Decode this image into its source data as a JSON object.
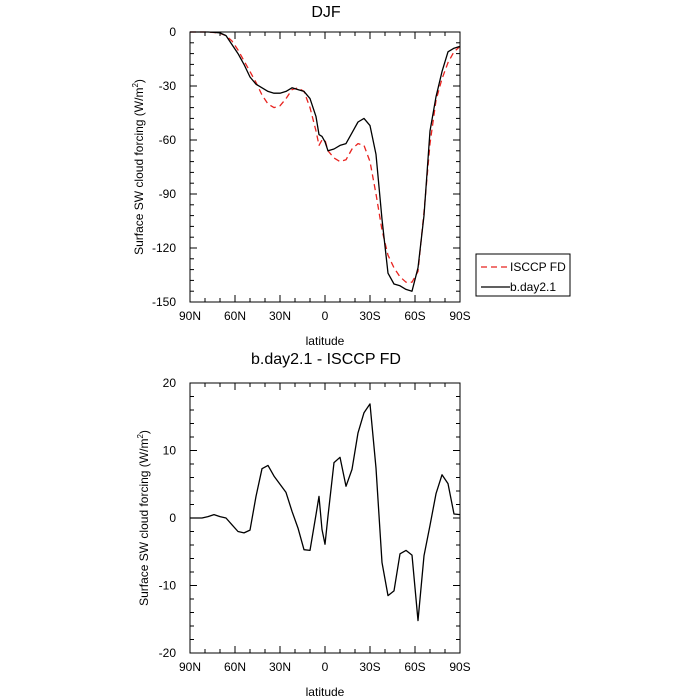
{
  "chart_data": [
    {
      "type": "line",
      "title": "DJF",
      "xlabel": "latitude",
      "ylabel": "Surface SW cloud forcing (W/m",
      "ylabel_superscript": "2",
      "ylabel_suffix": ")",
      "xlim": [
        90,
        -90
      ],
      "ylim": [
        -150,
        0
      ],
      "xticks": [
        90,
        60,
        30,
        0,
        -30,
        -60,
        -90
      ],
      "xtick_labels": [
        "90N",
        "60N",
        "30N",
        "0",
        "30S",
        "60S",
        "90S"
      ],
      "yticks": [
        0,
        -30,
        -60,
        -90,
        -120,
        -150
      ],
      "ytick_labels": [
        "0",
        "-30",
        "-60",
        "-90",
        "-120",
        "-150"
      ],
      "legend_position": "outside-right",
      "series": [
        {
          "name": "ISCCP FD",
          "color": "#e8231f",
          "dash": "dashed",
          "x": [
            90,
            86,
            82,
            78,
            74,
            70,
            66,
            62,
            58,
            54,
            50,
            46,
            42,
            38,
            34,
            30,
            26,
            22,
            18,
            14,
            10,
            6,
            4,
            2,
            0,
            -2,
            -6,
            -10,
            -14,
            -18,
            -22,
            -26,
            -30,
            -34,
            -38,
            -42,
            -46,
            -50,
            -54,
            -58,
            -62,
            -66,
            -70,
            -74,
            -78,
            -82,
            -86,
            -90
          ],
          "y": [
            0,
            0,
            0,
            0,
            -0.3,
            -0.8,
            -2,
            -5,
            -10,
            -16,
            -22,
            -28,
            -35,
            -40,
            -42,
            -41,
            -37,
            -32,
            -31,
            -33,
            -42,
            -55,
            -63,
            -60,
            -60,
            -66,
            -70,
            -72,
            -71,
            -65,
            -62,
            -63,
            -72,
            -90,
            -110,
            -124,
            -131,
            -136,
            -139,
            -139,
            -133,
            -100,
            -62,
            -38,
            -26,
            -17,
            -11,
            -8
          ]
        },
        {
          "name": "b.day2.1",
          "color": "#000000",
          "dash": "solid",
          "x": [
            90,
            86,
            82,
            78,
            74,
            70,
            66,
            62,
            58,
            54,
            50,
            46,
            42,
            38,
            34,
            30,
            26,
            22,
            18,
            14,
            10,
            6,
            4,
            2,
            0,
            -2,
            -6,
            -10,
            -14,
            -18,
            -22,
            -26,
            -30,
            -34,
            -38,
            -42,
            -46,
            -50,
            -54,
            -58,
            -62,
            -66,
            -70,
            -74,
            -78,
            -82,
            -86,
            -90
          ],
          "y": [
            0,
            0,
            0,
            0,
            -0.2,
            -0.5,
            -2,
            -7,
            -12,
            -18,
            -25,
            -29,
            -31,
            -33,
            -34,
            -34,
            -33,
            -31,
            -32,
            -33,
            -37,
            -47,
            -57,
            -58,
            -61,
            -66,
            -65,
            -63,
            -62,
            -56,
            -50,
            -48,
            -52,
            -68,
            -104,
            -134,
            -140,
            -141,
            -143,
            -144,
            -131,
            -102,
            -55,
            -36,
            -22,
            -11,
            -9,
            -8
          ]
        }
      ]
    },
    {
      "type": "line",
      "title": "b.day2.1 - ISCCP FD",
      "xlabel": "latitude",
      "ylabel": "Surface SW cloud forcing (W/m",
      "ylabel_superscript": "2",
      "ylabel_suffix": ")",
      "xlim": [
        90,
        -90
      ],
      "ylim": [
        -20,
        20
      ],
      "xticks": [
        90,
        60,
        30,
        0,
        -30,
        -60,
        -90
      ],
      "xtick_labels": [
        "90N",
        "60N",
        "30N",
        "0",
        "30S",
        "60S",
        "90S"
      ],
      "yticks": [
        20,
        10,
        0,
        -10,
        -20
      ],
      "ytick_labels": [
        "20",
        "10",
        "0",
        "-10",
        "-20"
      ],
      "series": [
        {
          "name": "b.day2.1 - ISCCP FD",
          "color": "#000000",
          "dash": "solid",
          "x": [
            90,
            86,
            82,
            78,
            74,
            70,
            66,
            62,
            58,
            54,
            50,
            46,
            42,
            38,
            34,
            30,
            26,
            22,
            18,
            14,
            10,
            6,
            4,
            2,
            0,
            -2,
            -6,
            -10,
            -14,
            -18,
            -22,
            -26,
            -30,
            -34,
            -38,
            -42,
            -46,
            -50,
            -54,
            -58,
            -62,
            -66,
            -70,
            -74,
            -78,
            -82,
            -86,
            -90
          ],
          "y": [
            0,
            0,
            0,
            0.2,
            0.5,
            0.2,
            0,
            -1,
            -2,
            -2.2,
            -1.8,
            3.2,
            7.3,
            7.8,
            6.2,
            5,
            3.8,
            1,
            -1.5,
            -4.7,
            -4.8,
            0.5,
            3.2,
            -1.7,
            -3.9,
            0.3,
            8.2,
            9,
            4.7,
            7.2,
            12.6,
            15.6,
            16.9,
            7.4,
            -6.6,
            -11.5,
            -10.8,
            -5.3,
            -4.8,
            -5.5,
            -15.2,
            -5.6,
            -1.1,
            3.6,
            6.4,
            5.1,
            0.6,
            0.5
          ]
        }
      ]
    }
  ]
}
